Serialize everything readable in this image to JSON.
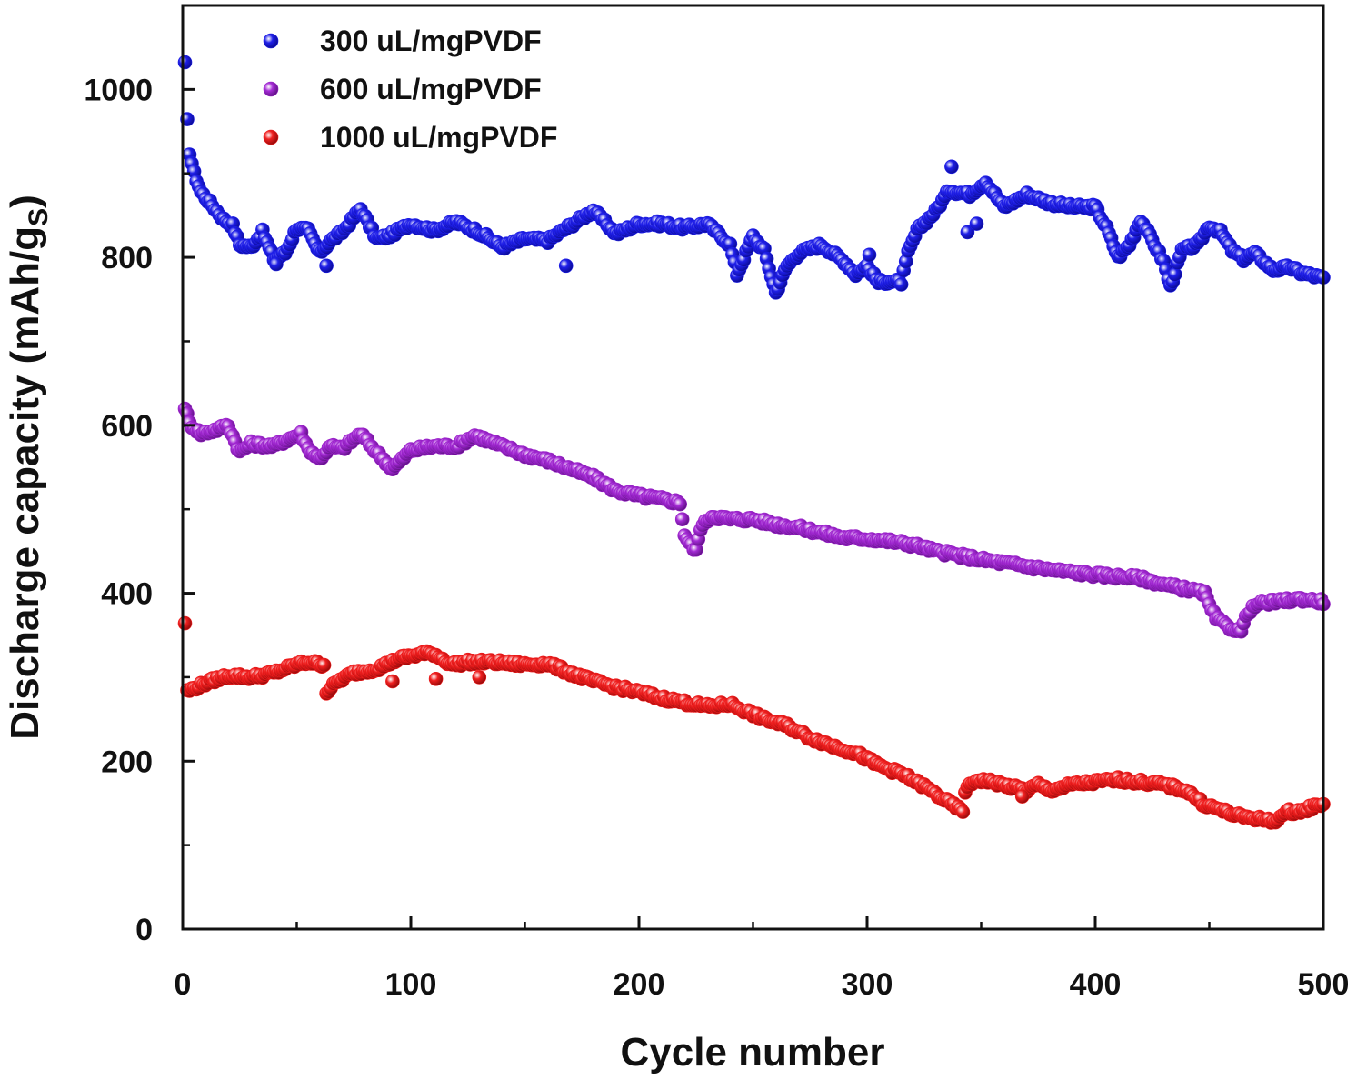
{
  "chart_data": {
    "type": "scatter",
    "xlabel": "Cycle number",
    "ylabel_main": "Discharge capacity (mAh/g",
    "ylabel_sub": "S",
    "ylabel_close": ")",
    "xlim": [
      0,
      500
    ],
    "ylim": [
      0,
      1100
    ],
    "xticks": [
      0,
      100,
      200,
      300,
      400,
      500
    ],
    "yticks": [
      0,
      200,
      400,
      600,
      800,
      1000
    ],
    "grid": false,
    "legend_position": "top-left",
    "series": [
      {
        "name": "300 uL/mgPVDF",
        "color": "#1f1fe8",
        "keypoints": [
          [
            1,
            1030
          ],
          [
            2,
            962
          ],
          [
            3,
            925
          ],
          [
            5,
            900
          ],
          [
            8,
            878
          ],
          [
            12,
            865
          ],
          [
            18,
            845
          ],
          [
            22,
            838
          ],
          [
            25,
            815
          ],
          [
            30,
            812
          ],
          [
            35,
            830
          ],
          [
            40,
            798
          ],
          [
            45,
            805
          ],
          [
            50,
            835
          ],
          [
            55,
            832
          ],
          [
            60,
            805
          ],
          [
            65,
            820
          ],
          [
            70,
            830
          ],
          [
            78,
            858
          ],
          [
            85,
            822
          ],
          [
            90,
            825
          ],
          [
            100,
            840
          ],
          [
            110,
            832
          ],
          [
            120,
            842
          ],
          [
            130,
            830
          ],
          [
            140,
            812
          ],
          [
            150,
            822
          ],
          [
            160,
            820
          ],
          [
            170,
            838
          ],
          [
            180,
            856
          ],
          [
            190,
            828
          ],
          [
            200,
            840
          ],
          [
            210,
            840
          ],
          [
            220,
            835
          ],
          [
            230,
            840
          ],
          [
            240,
            815
          ],
          [
            243,
            780
          ],
          [
            250,
            825
          ],
          [
            255,
            808
          ],
          [
            260,
            758
          ],
          [
            265,
            790
          ],
          [
            270,
            805
          ],
          [
            280,
            815
          ],
          [
            290,
            795
          ],
          [
            295,
            780
          ],
          [
            300,
            790
          ],
          [
            305,
            770
          ],
          [
            310,
            772
          ],
          [
            315,
            770
          ],
          [
            318,
            805
          ],
          [
            322,
            832
          ],
          [
            330,
            855
          ],
          [
            336,
            880
          ],
          [
            345,
            875
          ],
          [
            352,
            890
          ],
          [
            360,
            860
          ],
          [
            370,
            875
          ],
          [
            380,
            865
          ],
          [
            390,
            860
          ],
          [
            400,
            860
          ],
          [
            405,
            835
          ],
          [
            410,
            800
          ],
          [
            415,
            815
          ],
          [
            420,
            845
          ],
          [
            425,
            820
          ],
          [
            430,
            795
          ],
          [
            433,
            765
          ],
          [
            438,
            808
          ],
          [
            445,
            815
          ],
          [
            450,
            838
          ],
          [
            455,
            830
          ],
          [
            460,
            808
          ],
          [
            465,
            798
          ],
          [
            470,
            805
          ],
          [
            478,
            785
          ],
          [
            485,
            788
          ],
          [
            490,
            782
          ],
          [
            500,
            775
          ]
        ],
        "outliers": [
          [
            337,
            908
          ],
          [
            344,
            830
          ],
          [
            348,
            840
          ],
          [
            63,
            790
          ],
          [
            168,
            790
          ],
          [
            41,
            792
          ],
          [
            301,
            803
          ]
        ]
      },
      {
        "name": "600 uL/mgPVDF",
        "color": "#9a22c9",
        "keypoints": [
          [
            1,
            622
          ],
          [
            3,
            602
          ],
          [
            8,
            590
          ],
          [
            15,
            595
          ],
          [
            20,
            600
          ],
          [
            25,
            568
          ],
          [
            30,
            578
          ],
          [
            40,
            575
          ],
          [
            45,
            582
          ],
          [
            52,
            590
          ],
          [
            55,
            572
          ],
          [
            60,
            560
          ],
          [
            65,
            575
          ],
          [
            70,
            572
          ],
          [
            78,
            590
          ],
          [
            85,
            568
          ],
          [
            92,
            548
          ],
          [
            100,
            570
          ],
          [
            110,
            575
          ],
          [
            120,
            575
          ],
          [
            128,
            588
          ],
          [
            140,
            575
          ],
          [
            150,
            565
          ],
          [
            160,
            558
          ],
          [
            170,
            548
          ],
          [
            180,
            538
          ],
          [
            190,
            522
          ],
          [
            200,
            516
          ],
          [
            210,
            512
          ],
          [
            218,
            508
          ],
          [
            220,
            470
          ],
          [
            222,
            460
          ],
          [
            225,
            450
          ],
          [
            227,
            478
          ],
          [
            232,
            492
          ],
          [
            240,
            488
          ],
          [
            250,
            488
          ],
          [
            260,
            482
          ],
          [
            270,
            478
          ],
          [
            280,
            472
          ],
          [
            290,
            466
          ],
          [
            300,
            465
          ],
          [
            310,
            462
          ],
          [
            320,
            458
          ],
          [
            330,
            450
          ],
          [
            340,
            445
          ],
          [
            350,
            440
          ],
          [
            360,
            436
          ],
          [
            370,
            432
          ],
          [
            380,
            428
          ],
          [
            390,
            425
          ],
          [
            400,
            422
          ],
          [
            410,
            420
          ],
          [
            420,
            418
          ],
          [
            430,
            410
          ],
          [
            440,
            405
          ],
          [
            448,
            400
          ],
          [
            450,
            385
          ],
          [
            453,
            370
          ],
          [
            458,
            360
          ],
          [
            464,
            355
          ],
          [
            467,
            378
          ],
          [
            472,
            388
          ],
          [
            480,
            390
          ],
          [
            490,
            393
          ],
          [
            500,
            390
          ]
        ],
        "outliers": []
      },
      {
        "name": "1000 uL/mgPVDF",
        "color": "#ee1c1c",
        "keypoints": [
          [
            1,
            365
          ],
          [
            2,
            283
          ],
          [
            6,
            288
          ],
          [
            12,
            295
          ],
          [
            20,
            302
          ],
          [
            30,
            300
          ],
          [
            40,
            305
          ],
          [
            50,
            315
          ],
          [
            55,
            318
          ],
          [
            62,
            315
          ],
          [
            63,
            282
          ],
          [
            68,
            295
          ],
          [
            75,
            305
          ],
          [
            85,
            310
          ],
          [
            95,
            322
          ],
          [
            105,
            328
          ],
          [
            110,
            328
          ],
          [
            118,
            315
          ],
          [
            125,
            318
          ],
          [
            135,
            318
          ],
          [
            150,
            315
          ],
          [
            160,
            316
          ],
          [
            170,
            305
          ],
          [
            180,
            295
          ],
          [
            190,
            288
          ],
          [
            200,
            282
          ],
          [
            210,
            275
          ],
          [
            220,
            270
          ],
          [
            230,
            265
          ],
          [
            240,
            268
          ],
          [
            245,
            262
          ],
          [
            255,
            250
          ],
          [
            265,
            242
          ],
          [
            275,
            228
          ],
          [
            285,
            218
          ],
          [
            295,
            210
          ],
          [
            305,
            195
          ],
          [
            315,
            185
          ],
          [
            325,
            170
          ],
          [
            335,
            152
          ],
          [
            342,
            140
          ],
          [
            343,
            165
          ],
          [
            348,
            178
          ],
          [
            355,
            175
          ],
          [
            365,
            168
          ],
          [
            370,
            165
          ],
          [
            375,
            172
          ],
          [
            380,
            165
          ],
          [
            390,
            172
          ],
          [
            400,
            175
          ],
          [
            410,
            178
          ],
          [
            420,
            175
          ],
          [
            430,
            172
          ],
          [
            440,
            165
          ],
          [
            448,
            148
          ],
          [
            455,
            142
          ],
          [
            462,
            135
          ],
          [
            470,
            132
          ],
          [
            478,
            128
          ],
          [
            485,
            140
          ],
          [
            490,
            140
          ],
          [
            500,
            150
          ]
        ],
        "outliers": [
          [
            92,
            295
          ],
          [
            111,
            298
          ],
          [
            130,
            300
          ],
          [
            368,
            158
          ]
        ]
      }
    ]
  }
}
